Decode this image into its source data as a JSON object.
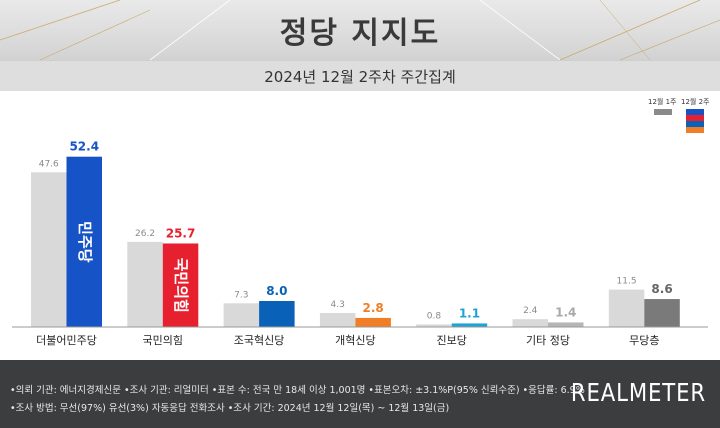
{
  "title": "정당 지지도",
  "subtitle": "2024년 12월 2주차 주간집계",
  "legend": {
    "prev": "12월 1주",
    "curr": "12월 2주"
  },
  "chart_data": {
    "type": "bar",
    "categories": [
      "더불어민주당",
      "국민의힘",
      "조국혁신당",
      "개혁신당",
      "진보당",
      "기타 정당",
      "무당층"
    ],
    "series": [
      {
        "name": "12월 1주",
        "values": [
          47.6,
          26.2,
          7.3,
          4.3,
          0.8,
          2.4,
          11.5
        ]
      },
      {
        "name": "12월 2주",
        "values": [
          52.4,
          25.7,
          8.0,
          2.8,
          1.1,
          1.4,
          8.6
        ]
      }
    ],
    "ylim": [
      0,
      60
    ],
    "colors": {
      "prev": "#d9d9d9",
      "curr": [
        "#1553c7",
        "#e6202e",
        "#0a62b8",
        "#f07e26",
        "#1fa3d6",
        "#b5b5b5",
        "#7a7a7a"
      ],
      "curr_label": [
        "#1553c7",
        "#e6202e",
        "#0a62b8",
        "#f07e26",
        "#1fa3d6",
        "#a9a9a9",
        "#666666"
      ]
    },
    "logo_text": [
      "민주당",
      "국민의힘"
    ]
  },
  "footer": {
    "line1": "•의뢰 기관: 에너지경제신문  •조사 기관: 리얼미터  •표본 수: 전국 만 18세 이상 1,001명  •표본오차: ±3.1%P(95% 신뢰수준)  •응답률: 6.9%",
    "line2": "•조사 방법: 무선(97%) 유선(3%) 자동응답 전화조사  •조사 기간: 2024년 12월 12일(목) ~ 12월 13일(금)",
    "logo": "REALMETER"
  }
}
